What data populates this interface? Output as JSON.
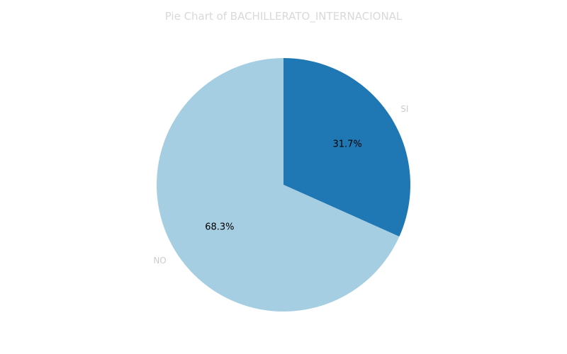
{
  "chart_data": {
    "type": "pie",
    "title": "Pie Chart of BACHILLERATO_INTERNACIONAL",
    "slices": [
      {
        "label": "SI",
        "value": 31.7,
        "pct_label": "31.7%",
        "color": "#1f78b4"
      },
      {
        "label": "NO",
        "value": 68.3,
        "pct_label": "68.3%",
        "color": "#a6cee3"
      }
    ],
    "start_angle": "90° (12 o'clock), clockwise"
  }
}
